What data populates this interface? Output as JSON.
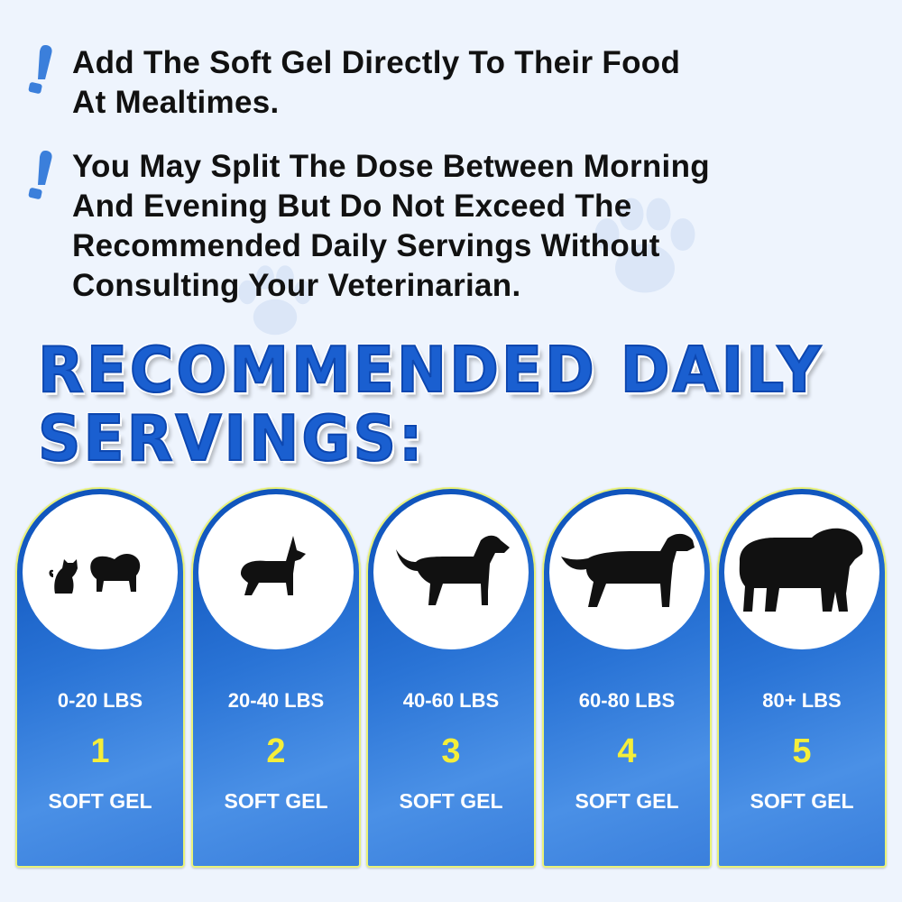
{
  "instructions": [
    {
      "icon": "exclamation-icon",
      "lines": [
        "Add The Soft Gel Directly To Their Food",
        "At Mealtimes."
      ]
    },
    {
      "icon": "exclamation-icon",
      "lines": [
        "You May Split The Dose Between Morning",
        "And Evening But Do Not Exceed The",
        "Recommended Daily Servings Without",
        "Consulting Your Veterinarian."
      ]
    }
  ],
  "headline": {
    "line1": "RECOMMENDED DAILY",
    "line2": "SERVINGS:"
  },
  "servings": [
    {
      "icon": "cat-and-small-dog-icon",
      "weight": "0-20 LBS",
      "count": "1",
      "unit": "SOFT GEL"
    },
    {
      "icon": "corgi-icon",
      "weight": "20-40 LBS",
      "count": "2",
      "unit": "SOFT GEL"
    },
    {
      "icon": "medium-dog-icon",
      "weight": "40-60 LBS",
      "count": "3",
      "unit": "SOFT GEL"
    },
    {
      "icon": "large-dog-icon",
      "weight": "60-80 LBS",
      "count": "4",
      "unit": "SOFT GEL"
    },
    {
      "icon": "shaggy-dog-icon",
      "weight": "80+ LBS",
      "count": "5",
      "unit": "SOFT GEL"
    }
  ],
  "colors": {
    "accent": "#1a5fd0",
    "number": "#f4ee3a",
    "background": "#eef4fd",
    "card_border": "#e9f27a"
  }
}
